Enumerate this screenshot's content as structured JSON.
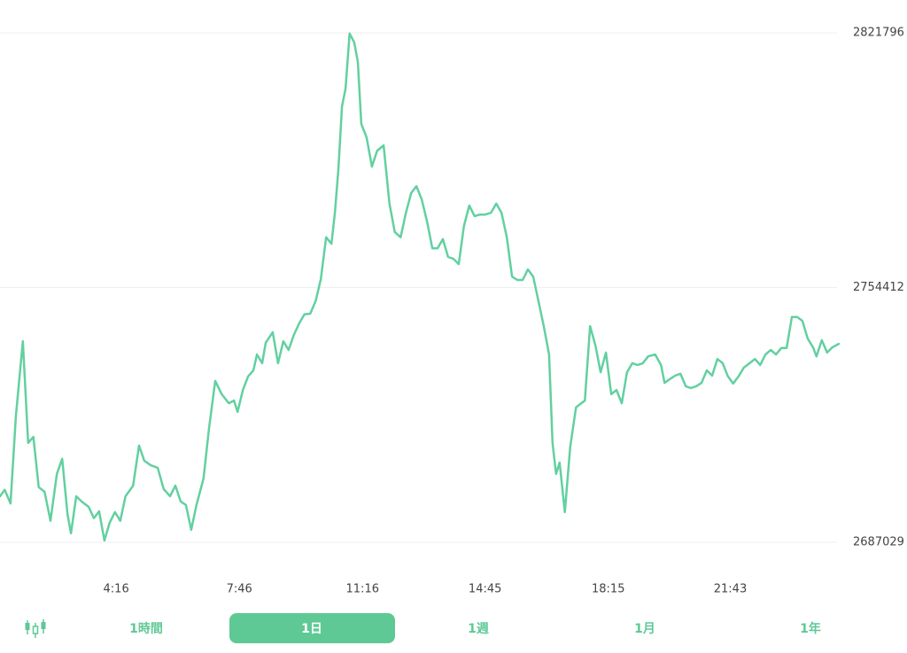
{
  "chart_data": {
    "type": "line",
    "color": "#62d0a0",
    "grid": true,
    "x": [
      58,
      66,
      76,
      85,
      97,
      106,
      115,
      124,
      134,
      144,
      155,
      164,
      173,
      179,
      188,
      197,
      209,
      218,
      227,
      236,
      245,
      254,
      263,
      272,
      285,
      295,
      304,
      315,
      327,
      337,
      348,
      357,
      366,
      375,
      384,
      393,
      405,
      414,
      425,
      436,
      448,
      457,
      463,
      472,
      481,
      490,
      496,
      505,
      511,
      523,
      532,
      541,
      550,
      559,
      568,
      577,
      587,
      596,
      605,
      614,
      623,
      629,
      635,
      641,
      647,
      654,
      662,
      668,
      674,
      683,
      692,
      701,
      712,
      722,
      731,
      741,
      750,
      759,
      768,
      777,
      786,
      795,
      804,
      813,
      822,
      831,
      840,
      849,
      858,
      867,
      876,
      885,
      895,
      904,
      913,
      922,
      931,
      940,
      949,
      958,
      967,
      976,
      985,
      994,
      1000,
      1006,
      1012,
      1021,
      1030,
      1040,
      1049,
      1055,
      1064,
      1073,
      1082,
      1091,
      1100,
      1109,
      1118,
      1127,
      1136,
      1145,
      1154,
      1163,
      1175,
      1185,
      1191,
      1200,
      1209,
      1218,
      1227,
      1236,
      1245,
      1254,
      1263,
      1272,
      1281,
      1290,
      1299,
      1308,
      1317,
      1326,
      1336,
      1345,
      1354,
      1363,
      1372,
      1381,
      1390,
      1399,
      1408,
      1417,
      1426,
      1435,
      1444,
      1450,
      1459,
      1468,
      1477,
      1488
    ],
    "values": [
      2699200,
      2700900,
      2697300,
      2720300,
      2740200,
      2713300,
      2714900,
      2701600,
      2700400,
      2692700,
      2705100,
      2709100,
      2694500,
      2689400,
      2699200,
      2697800,
      2696400,
      2693400,
      2695200,
      2687500,
      2692200,
      2695000,
      2692700,
      2699200,
      2702000,
      2712600,
      2708600,
      2707400,
      2706700,
      2701100,
      2699200,
      2702000,
      2697800,
      2696900,
      2690300,
      2696900,
      2703900,
      2716800,
      2729700,
      2726200,
      2723800,
      2724500,
      2721500,
      2727300,
      2730900,
      2732500,
      2736700,
      2734400,
      2739800,
      2742600,
      2734400,
      2740200,
      2737900,
      2741900,
      2744900,
      2747300,
      2747500,
      2750800,
      2756600,
      2767700,
      2766000,
      2774200,
      2785900,
      2802300,
      2807000,
      2821600,
      2819200,
      2814100,
      2797700,
      2794100,
      2786400,
      2790600,
      2792000,
      2776600,
      2769100,
      2767700,
      2774200,
      2779400,
      2781200,
      2777700,
      2771900,
      2764800,
      2764800,
      2767200,
      2762500,
      2762000,
      2760600,
      2770700,
      2776100,
      2773300,
      2773700,
      2773700,
      2774200,
      2776600,
      2774200,
      2767700,
      2757300,
      2756400,
      2756400,
      2759200,
      2757300,
      2750800,
      2744200,
      2736700,
      2713300,
      2705100,
      2708100,
      2695000,
      2712100,
      2722700,
      2723800,
      2724500,
      2744200,
      2739100,
      2732000,
      2737200,
      2726200,
      2727300,
      2723800,
      2732000,
      2734400,
      2733900,
      2734400,
      2736200,
      2736700,
      2733900,
      2729200,
      2730200,
      2731100,
      2731600,
      2728300,
      2727800,
      2728300,
      2729200,
      2732500,
      2731100,
      2735500,
      2734400,
      2730900,
      2729000,
      2730900,
      2733200,
      2734400,
      2735500,
      2733900,
      2736700,
      2737900,
      2736700,
      2738400,
      2738400,
      2746600,
      2746600,
      2745600,
      2740900,
      2738600,
      2736200,
      2740500,
      2737200,
      2738600,
      2739500
    ],
    "xlim": [
      58,
      1488
    ],
    "xticks": [
      {
        "value": 256,
        "label": "4:16"
      },
      {
        "value": 466,
        "label": "7:46"
      },
      {
        "value": 676,
        "label": "11:16"
      },
      {
        "value": 885,
        "label": "14:45"
      },
      {
        "value": 1095,
        "label": "18:15"
      },
      {
        "value": 1303,
        "label": "21:43"
      }
    ],
    "ylim": [
      2687029,
      2821796
    ],
    "yticks": [
      2687029,
      2754412,
      2821796
    ]
  },
  "tabs": [
    "1時間",
    "1日",
    "1週",
    "1月",
    "1年"
  ],
  "active_tab": 1
}
